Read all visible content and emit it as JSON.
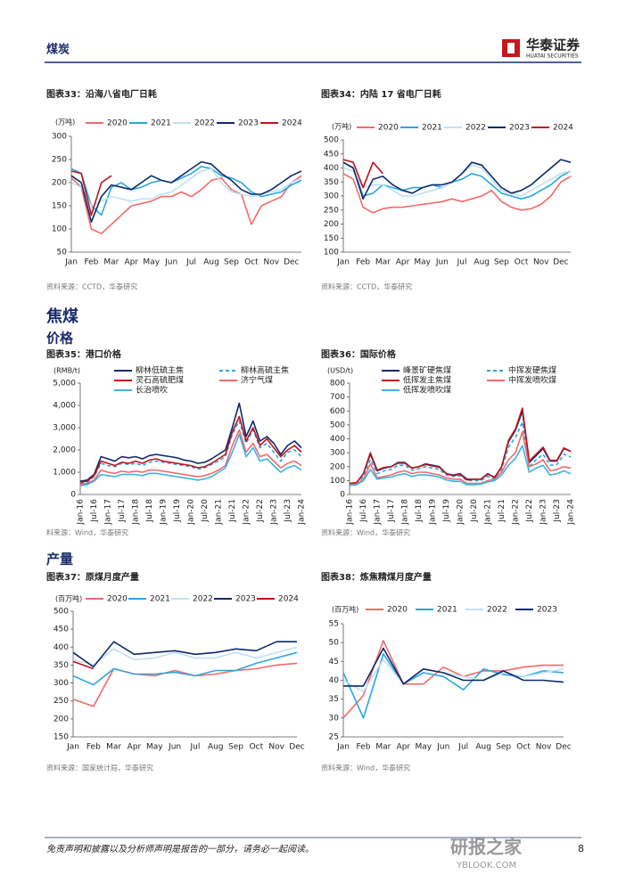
{
  "header": {
    "sector": "煤炭",
    "brand": "华泰证券",
    "brand_en": "HUATAI SECURITIES"
  },
  "headings": {
    "section": "焦煤",
    "price": "价格",
    "output": "产量"
  },
  "chart_data": [
    {
      "type": "line",
      "title": "图表33：沿海八省电厂日耗",
      "unit": "(万吨)",
      "source": "资料来源：CCTD，华泰研究",
      "categories": [
        "Jan",
        null,
        "Feb",
        null,
        "Mar",
        null,
        "Apr",
        null,
        "May",
        null,
        "Jun",
        null,
        "Jul",
        null,
        "Aug",
        null,
        "Sep",
        null,
        "Oct",
        null,
        "Nov",
        null,
        "Dec",
        null
      ],
      "ylim": [
        50,
        300
      ],
      "yticks": [
        50,
        100,
        150,
        200,
        250,
        300
      ],
      "series": [
        {
          "name": "2020",
          "color": "#f06a6a",
          "values": [
            210,
            190,
            100,
            90,
            110,
            130,
            150,
            155,
            160,
            170,
            170,
            180,
            170,
            185,
            205,
            210,
            185,
            175,
            110,
            150,
            160,
            170,
            200,
            215
          ]
        },
        {
          "name": "2021",
          "color": "#2aa7e0",
          "values": [
            230,
            220,
            150,
            130,
            190,
            200,
            185,
            190,
            200,
            205,
            200,
            210,
            220,
            235,
            230,
            215,
            210,
            200,
            180,
            170,
            175,
            180,
            195,
            205
          ]
        },
        {
          "name": "2022",
          "color": "#bfe0f5",
          "values": [
            200,
            190,
            150,
            160,
            170,
            165,
            160,
            165,
            165,
            175,
            180,
            195,
            210,
            225,
            230,
            200,
            180,
            175,
            170,
            175,
            180,
            185,
            200,
            210
          ]
        },
        {
          "name": "2023",
          "color": "#0d2a6b",
          "values": [
            215,
            200,
            115,
            170,
            195,
            190,
            185,
            200,
            215,
            205,
            200,
            215,
            230,
            245,
            240,
            220,
            205,
            185,
            175,
            175,
            185,
            200,
            215,
            225
          ]
        },
        {
          "name": "2024",
          "color": "#c0141c",
          "values": [
            225,
            220,
            130,
            200,
            215,
            null,
            null,
            null,
            null,
            null,
            null,
            null,
            null,
            null,
            null,
            null,
            null,
            null,
            null,
            null,
            null,
            null,
            null,
            null
          ]
        }
      ]
    },
    {
      "type": "line",
      "title": "图表34：内陆 17 省电厂日耗",
      "unit": "(万吨)",
      "source": "资料来源：CCTD，华泰研究",
      "categories": [
        "Jan",
        null,
        "Feb",
        null,
        "Mar",
        null,
        "Apr",
        null,
        "May",
        null,
        "Jun",
        null,
        "Jul",
        null,
        "Aug",
        null,
        "Sep",
        null,
        "Oct",
        null,
        "Nov",
        null,
        "Dec",
        null
      ],
      "ylim": [
        100,
        500
      ],
      "yticks": [
        100,
        150,
        200,
        250,
        300,
        350,
        400,
        450,
        500
      ],
      "series": [
        {
          "name": "2020",
          "color": "#f06a6a",
          "values": [
            380,
            360,
            260,
            240,
            255,
            260,
            260,
            265,
            270,
            275,
            280,
            290,
            280,
            290,
            300,
            320,
            280,
            260,
            250,
            255,
            270,
            300,
            350,
            370
          ]
        },
        {
          "name": "2021",
          "color": "#2aa7e0",
          "values": [
            420,
            400,
            300,
            310,
            340,
            330,
            320,
            330,
            330,
            340,
            330,
            350,
            360,
            380,
            370,
            340,
            310,
            300,
            290,
            300,
            320,
            340,
            370,
            390
          ]
        },
        {
          "name": "2022",
          "color": "#bfe0f5",
          "values": [
            400,
            390,
            330,
            340,
            340,
            320,
            300,
            300,
            310,
            320,
            330,
            350,
            380,
            410,
            400,
            360,
            320,
            310,
            300,
            320,
            340,
            360,
            380,
            390
          ]
        },
        {
          "name": "2023",
          "color": "#0d2a6b",
          "values": [
            420,
            400,
            290,
            360,
            370,
            340,
            320,
            310,
            330,
            340,
            340,
            350,
            380,
            420,
            410,
            370,
            330,
            310,
            320,
            340,
            370,
            400,
            430,
            420
          ]
        },
        {
          "name": "2024",
          "color": "#c0141c",
          "values": [
            430,
            420,
            330,
            420,
            380,
            null,
            null,
            null,
            null,
            null,
            null,
            null,
            null,
            null,
            null,
            null,
            null,
            null,
            null,
            null,
            null,
            null,
            null,
            null
          ]
        }
      ]
    },
    {
      "type": "line",
      "title": "图表35：港口价格",
      "unit": "(RMB/t)",
      "source": "料来源：Wind，华泰研究",
      "categories": [
        "Jan-16",
        null,
        "Jul-16",
        null,
        "Jan-17",
        null,
        "Jul-17",
        null,
        "Jan-18",
        null,
        "Jul-18",
        null,
        "Jan-19",
        null,
        "Jul-19",
        null,
        "Jan-20",
        null,
        "Jul-20",
        null,
        "Jan-21",
        null,
        "Jul-21",
        null,
        "Jan-22",
        null,
        "Jul-22",
        null,
        "Jan-23",
        null,
        "Jul-23",
        null,
        "Jan-24"
      ],
      "ylim": [
        0,
        5000
      ],
      "yticks": [
        0,
        {
          "value": 1000,
          "label": "1,000"
        },
        {
          "value": 2000,
          "label": "2,000"
        },
        {
          "value": 3000,
          "label": "3,000"
        },
        {
          "value": 4000,
          "label": "4,000"
        },
        {
          "value": 5000,
          "label": "5,000"
        }
      ],
      "series": [
        {
          "name": "柳林低硫主焦",
          "color": "#0d2a6b",
          "values": [
            600,
            650,
            900,
            1700,
            1600,
            1500,
            1700,
            1650,
            1700,
            1600,
            1750,
            1800,
            1750,
            1700,
            1650,
            1550,
            1500,
            1400,
            1450,
            1600,
            1800,
            2000,
            3000,
            4100,
            2600,
            3300,
            2400,
            2600,
            2300,
            1800,
            2200,
            2400,
            2100
          ]
        },
        {
          "name": "柳林高硫主焦",
          "color": "#2aa7e0",
          "dash": true,
          "values": [
            500,
            550,
            800,
            1400,
            1300,
            1250,
            1400,
            1350,
            1400,
            1300,
            1450,
            1500,
            1450,
            1400,
            1350,
            1300,
            1250,
            1150,
            1200,
            1350,
            1500,
            1700,
            2700,
            3300,
            2300,
            2900,
            2100,
            2300,
            1900,
            1500,
            1900,
            2000,
            1700
          ]
        },
        {
          "name": "灵石高硫肥煤",
          "color": "#c0141c",
          "values": [
            550,
            600,
            850,
            1500,
            1400,
            1300,
            1450,
            1400,
            1500,
            1400,
            1550,
            1600,
            1500,
            1450,
            1400,
            1350,
            1300,
            1200,
            1250,
            1400,
            1600,
            1800,
            2800,
            3500,
            2400,
            3000,
            2200,
            2500,
            2100,
            1700,
            2000,
            2200,
            1900
          ]
        },
        {
          "name": "济宁气煤",
          "color": "#f06a6a",
          "values": [
            450,
            500,
            650,
            1100,
            1000,
            950,
            1050,
            1000,
            1050,
            1000,
            1100,
            1100,
            1050,
            1000,
            950,
            900,
            850,
            800,
            850,
            950,
            1100,
            1300,
            2200,
            2900,
            1900,
            2300,
            1700,
            1800,
            1500,
            1200,
            1400,
            1500,
            1300
          ]
        },
        {
          "name": "长治喷吹",
          "color": "#39b3e6",
          "values": [
            400,
            450,
            600,
            900,
            850,
            800,
            900,
            900,
            900,
            850,
            950,
            950,
            900,
            850,
            800,
            750,
            700,
            650,
            700,
            800,
            1000,
            1200,
            1900,
            2700,
            1700,
            2100,
            1500,
            1600,
            1300,
            1000,
            1200,
            1300,
            1100
          ]
        }
      ]
    },
    {
      "type": "line",
      "title": "图表36：国际价格",
      "unit": "(USD/t)",
      "source": "资料来源：Wind，华泰研究",
      "categories": [
        "Jan-16",
        null,
        "Jul-16",
        null,
        "Jan-17",
        null,
        "Jul-17",
        null,
        "Jan-18",
        null,
        "Jul-18",
        null,
        "Jan-19",
        null,
        "Jul-19",
        null,
        "Jan-20",
        null,
        "Jul-20",
        null,
        "Jan-21",
        null,
        "Jul-21",
        null,
        "Jan-22",
        null,
        "Jul-22",
        null,
        "Jan-23",
        null,
        "Jul-23",
        null,
        "Jan-24"
      ],
      "ylim": [
        0,
        800
      ],
      "yticks": [
        0,
        100,
        200,
        300,
        400,
        500,
        600,
        700,
        800
      ],
      "series": [
        {
          "name": "峰景矿硬焦煤",
          "color": "#0d2a6b",
          "values": [
            80,
            85,
            150,
            290,
            170,
            190,
            200,
            230,
            230,
            190,
            200,
            220,
            210,
            200,
            150,
            140,
            150,
            110,
            110,
            110,
            150,
            120,
            200,
            380,
            460,
            600,
            230,
            280,
            330,
            240,
            240,
            330,
            310
          ]
        },
        {
          "name": "中挥发硬焦煤",
          "color": "#2aa7e0",
          "dash": true,
          "values": [
            75,
            80,
            130,
            250,
            150,
            170,
            180,
            210,
            210,
            175,
            185,
            200,
            190,
            180,
            140,
            130,
            135,
            100,
            100,
            100,
            130,
            110,
            180,
            340,
            410,
            520,
            200,
            250,
            290,
            210,
            215,
            290,
            270
          ]
        },
        {
          "name": "低挥发主焦煤",
          "color": "#c0141c",
          "values": [
            80,
            85,
            150,
            300,
            175,
            195,
            200,
            225,
            225,
            190,
            200,
            215,
            205,
            195,
            150,
            135,
            145,
            105,
            110,
            110,
            145,
            125,
            200,
            390,
            470,
            620,
            240,
            290,
            340,
            245,
            245,
            335,
            310
          ]
        },
        {
          "name": "中挥发喷吹煤",
          "color": "#f06a6a",
          "values": [
            70,
            75,
            110,
            220,
            120,
            130,
            140,
            160,
            170,
            150,
            160,
            160,
            150,
            140,
            120,
            110,
            110,
            80,
            80,
            80,
            100,
            110,
            160,
            250,
            300,
            450,
            200,
            220,
            250,
            170,
            180,
            200,
            190
          ]
        },
        {
          "name": "低挥发喷吹煤",
          "color": "#39b3e6",
          "values": [
            65,
            70,
            100,
            180,
            110,
            120,
            125,
            140,
            150,
            130,
            140,
            140,
            135,
            125,
            105,
            95,
            95,
            70,
            70,
            75,
            90,
            100,
            140,
            210,
            260,
            350,
            160,
            190,
            210,
            140,
            150,
            170,
            150
          ]
        }
      ]
    },
    {
      "type": "line",
      "title": "图表37：原煤月度产量",
      "unit": "(百万吨)",
      "source": "资料来源：国家统计局，华泰研究",
      "categories": [
        "Jan",
        "Feb",
        "Mar",
        "Apr",
        "May",
        "Jun",
        "Jul",
        "Aug",
        "Sep",
        "Oct",
        "Nov",
        "Dec"
      ],
      "ylim": [
        150,
        500
      ],
      "yticks": [
        150,
        200,
        250,
        300,
        350,
        400,
        450,
        500
      ],
      "series": [
        {
          "name": "2020",
          "color": "#f06a6a",
          "values": [
            255,
            235,
            340,
            325,
            320,
            335,
            320,
            325,
            335,
            340,
            350,
            355
          ]
        },
        {
          "name": "2021",
          "color": "#2aa7e0",
          "values": [
            320,
            295,
            340,
            325,
            325,
            330,
            320,
            335,
            335,
            355,
            370,
            385
          ]
        },
        {
          "name": "2022",
          "color": "#bfe0f5",
          "values": [
            365,
            350,
            395,
            365,
            370,
            385,
            370,
            370,
            385,
            370,
            385,
            400
          ]
        },
        {
          "name": "2023",
          "color": "#0d2a6b",
          "values": [
            385,
            345,
            415,
            380,
            385,
            390,
            380,
            385,
            395,
            390,
            415,
            415
          ]
        },
        {
          "name": "2024",
          "color": "#c0141c",
          "values": [
            360,
            340,
            null,
            null,
            null,
            null,
            null,
            null,
            null,
            null,
            null,
            null
          ]
        }
      ]
    },
    {
      "type": "line",
      "title": "图表38：炼焦精煤月度产量",
      "unit": "(百万吨)",
      "source": "资料来源：Wind，华泰研究",
      "categories": [
        "Jan",
        "Feb",
        "Mar",
        "Apr",
        "May",
        "Jun",
        "Jul",
        "Aug",
        "Sep",
        "Oct",
        "Nov",
        "Dec"
      ],
      "ylim": [
        25,
        55
      ],
      "yticks": [
        25,
        30,
        35,
        40,
        45,
        50,
        55
      ],
      "series": [
        {
          "name": "2020",
          "color": "#f06a6a",
          "values": [
            30,
            36,
            50.5,
            39,
            39,
            43.5,
            41,
            42.5,
            42.5,
            43.5,
            44,
            44
          ]
        },
        {
          "name": "2021",
          "color": "#2aa7e0",
          "values": [
            42,
            30,
            47,
            39,
            42,
            41,
            37.5,
            43,
            41.5,
            41,
            42.5,
            42
          ]
        },
        {
          "name": "2022",
          "color": "#bfe0f5",
          "values": [
            40,
            37,
            45.5,
            39,
            43,
            42,
            41,
            40,
            42,
            41,
            42,
            43
          ]
        },
        {
          "name": "2023",
          "color": "#0d2a6b",
          "values": [
            38.5,
            38.5,
            48.5,
            39,
            43,
            42,
            40,
            40,
            42.5,
            40,
            40,
            39.5
          ]
        }
      ]
    }
  ],
  "footer": {
    "disclaimer": "免责声明和披露以及分析师声明是报告的一部分，请务必一起阅读。",
    "page": "8"
  },
  "watermark": {
    "cn": "研报之家",
    "en": "YBLOOK.COM"
  }
}
